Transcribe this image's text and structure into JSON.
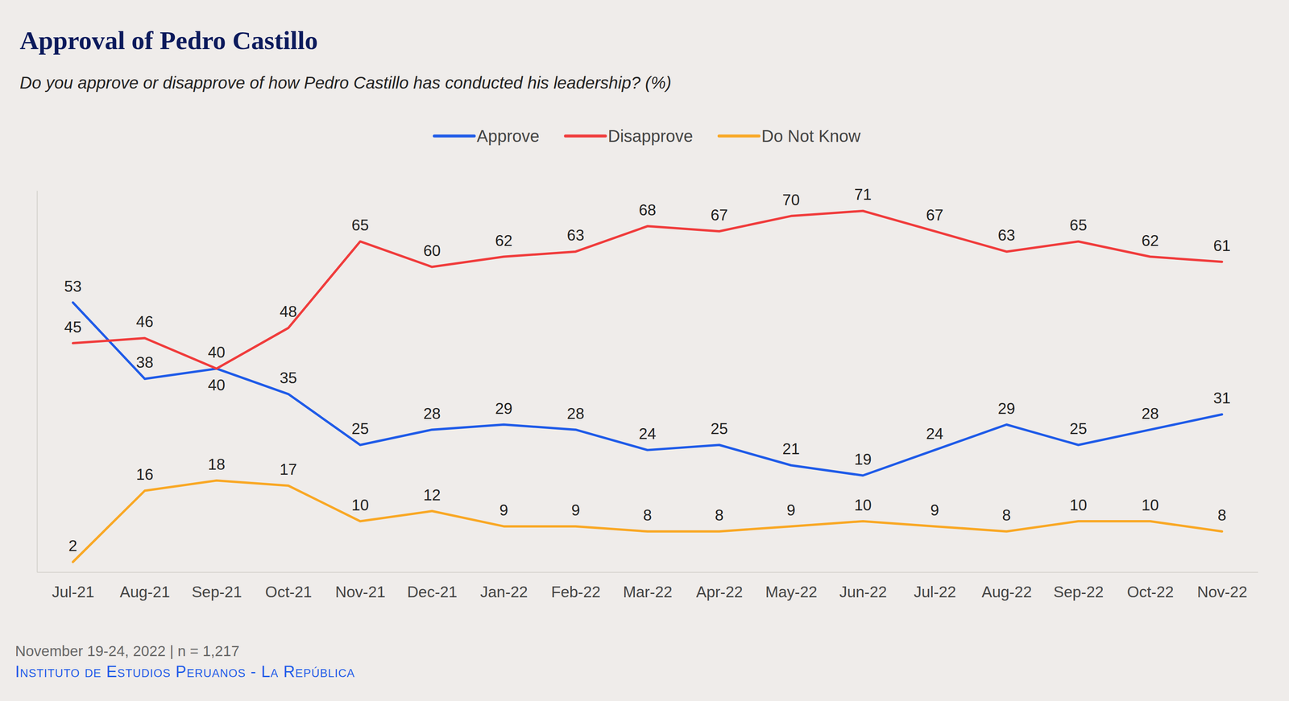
{
  "chart_data": {
    "type": "line",
    "title": "Approval of Pedro Castillo",
    "subtitle": "Do you approve or disapprove of how Pedro Castillo has conducted his leadership? (%)",
    "categories": [
      "Jul-21",
      "Aug-21",
      "Sep-21",
      "Oct-21",
      "Nov-21",
      "Dec-21",
      "Jan-22",
      "Feb-22",
      "Mar-22",
      "Apr-22",
      "May-22",
      "Jun-22",
      "Jul-22",
      "Aug-22",
      "Sep-22",
      "Oct-22",
      "Nov-22"
    ],
    "series": [
      {
        "name": "Approve",
        "color": "#1f5be8",
        "values": [
          53,
          38,
          40,
          35,
          25,
          28,
          29,
          28,
          24,
          25,
          21,
          19,
          24,
          29,
          25,
          28,
          31
        ]
      },
      {
        "name": "Disapprove",
        "color": "#f03c3c",
        "values": [
          45,
          46,
          40,
          48,
          65,
          60,
          62,
          63,
          68,
          67,
          70,
          71,
          67,
          63,
          65,
          62,
          61
        ]
      },
      {
        "name": "Do Not Know",
        "color": "#f9a825",
        "values": [
          2,
          16,
          18,
          17,
          10,
          12,
          9,
          9,
          8,
          8,
          9,
          10,
          9,
          8,
          10,
          10,
          8
        ]
      }
    ],
    "ylim": [
      0,
      75
    ],
    "grid": false,
    "legend": "top",
    "data_labels": true,
    "tick_labels": "x",
    "note": "November 19-24, 2022 | n = 1,217",
    "source": "Instituto de Estudios Peruanos - La República"
  }
}
